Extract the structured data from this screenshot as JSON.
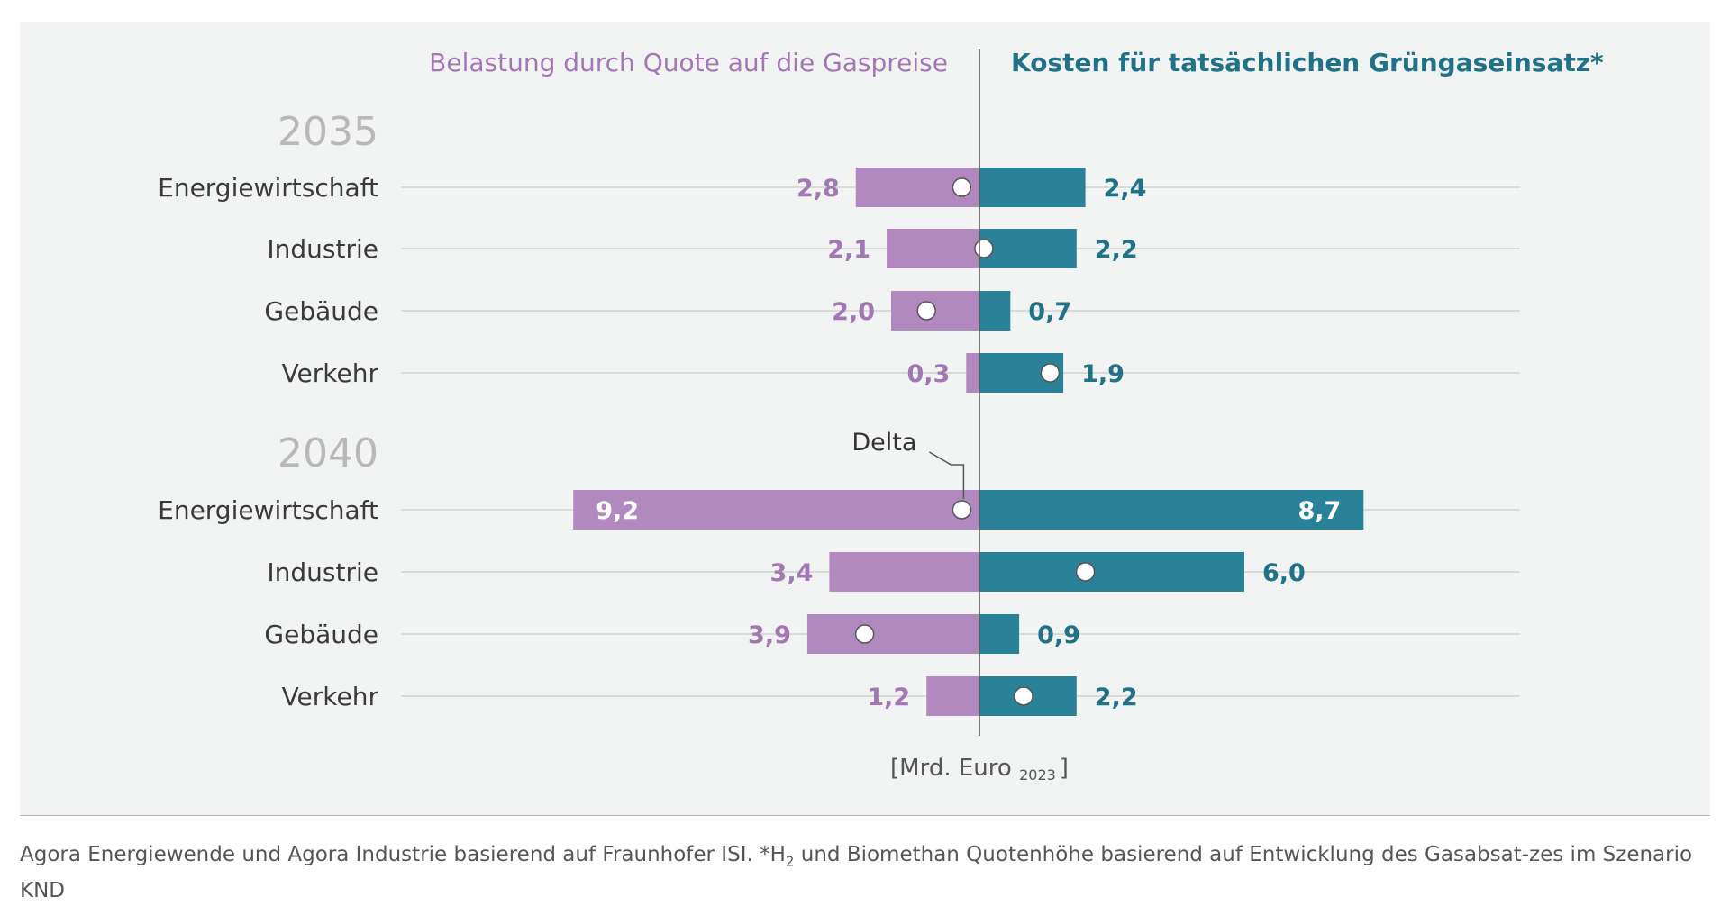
{
  "chart_data": {
    "type": "bar",
    "left_header": "Belastung durch Quote auf die Gaspreise",
    "right_header": "Kosten für tatsächlichen Grüngaseinsatz*",
    "unit_main": "[Mrd. Euro",
    "unit_sub": "2023",
    "unit_close": "]",
    "delta_label": "Delta",
    "colors": {
      "left": "#b189bf",
      "right": "#2a8299",
      "left_text": "#a277b4",
      "right_text": "#1f7288",
      "year": "#b8b8b8",
      "category": "#3a3a3a"
    },
    "groups": [
      {
        "year": "2035",
        "rows": [
          {
            "category": "Energiewirtschaft",
            "left": 2.8,
            "left_label": "2,8",
            "right": 2.4,
            "right_label": "2,4",
            "delta": -0.4
          },
          {
            "category": "Industrie",
            "left": 2.1,
            "left_label": "2,1",
            "right": 2.2,
            "right_label": "2,2",
            "delta": 0.1
          },
          {
            "category": "Gebäude",
            "left": 2.0,
            "left_label": "2,0",
            "right": 0.7,
            "right_label": "0,7",
            "delta": -1.2
          },
          {
            "category": "Verkehr",
            "left": 0.3,
            "left_label": "0,3",
            "right": 1.9,
            "right_label": "1,9",
            "delta": 1.6
          }
        ]
      },
      {
        "year": "2040",
        "rows": [
          {
            "category": "Energiewirtschaft",
            "left": 9.2,
            "left_label": "9,2",
            "right": 8.7,
            "right_label": "8,7",
            "delta": -0.4
          },
          {
            "category": "Industrie",
            "left": 3.4,
            "left_label": "3,4",
            "right": 6.0,
            "right_label": "6,0",
            "delta": 2.4
          },
          {
            "category": "Gebäude",
            "left": 3.9,
            "left_label": "3,9",
            "right": 0.9,
            "right_label": "0,9",
            "delta": -2.6
          },
          {
            "category": "Verkehr",
            "left": 1.2,
            "left_label": "1,2",
            "right": 2.2,
            "right_label": "2,2",
            "delta": 1.0
          }
        ]
      }
    ]
  },
  "footer": {
    "source_text": "Agora Energiewende und Agora Industrie basierend auf Fraunhofer ISI. *H",
    "sub": "2",
    "rest": " und Biomethan Quotenhöhe basierend auf Entwicklung des Gasabsat-zes im Szenario KND"
  }
}
